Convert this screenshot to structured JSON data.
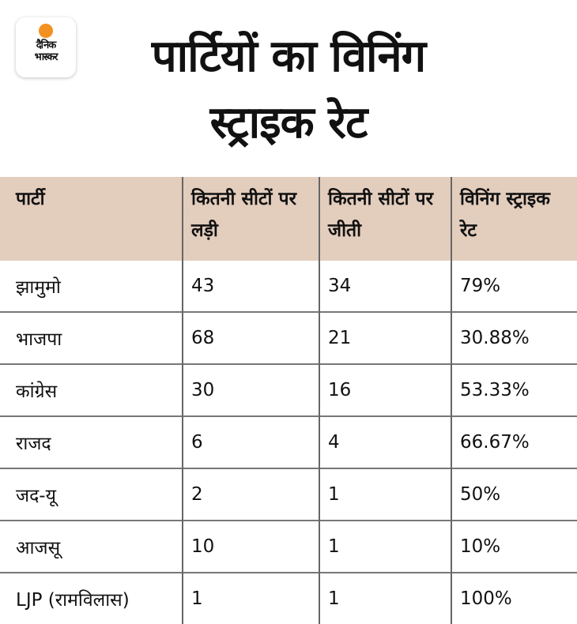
{
  "logo": {
    "line1": "दैनिक",
    "line2": "भास्कर"
  },
  "title": {
    "line1": "पार्टियों का विनिंग",
    "line2": "स्ट्राइक रेट"
  },
  "chart_data": {
    "type": "table",
    "title": "पार्टियों का विनिंग स्ट्राइक रेट",
    "columns": [
      "पार्टी",
      "कितनी सीटों पर लड़ी",
      "कितनी सीटों पर जीती",
      "विनिंग स्ट्राइक रेट"
    ],
    "rows": [
      [
        "झामुमो",
        "43",
        "34",
        "79%"
      ],
      [
        "भाजपा",
        "68",
        "21",
        "30.88%"
      ],
      [
        "कांग्रेस",
        "30",
        "16",
        "53.33%"
      ],
      [
        "राजद",
        "6",
        "4",
        "66.67%"
      ],
      [
        "जद-यू",
        "2",
        "1",
        "50%"
      ],
      [
        "आजसू",
        "10",
        "1",
        "10%"
      ],
      [
        "LJP (रामविलास)",
        "1",
        "1",
        "100%"
      ]
    ]
  },
  "colors": {
    "header_bg": "#e3cdbd",
    "logo_dot": "#f39120"
  }
}
